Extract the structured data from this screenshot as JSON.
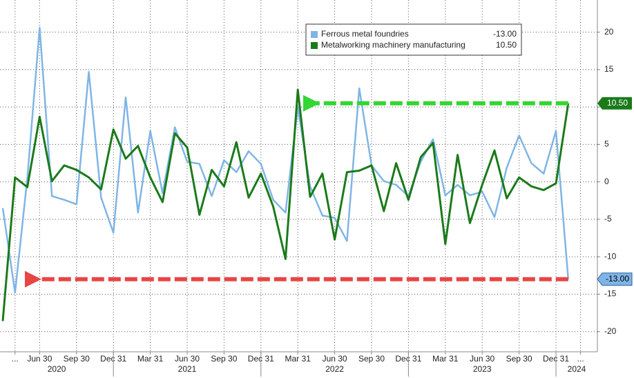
{
  "chart_data": {
    "type": "line",
    "categories": [
      null,
      "...",
      null,
      "Jun 30",
      null,
      null,
      "Sep 30",
      null,
      null,
      "Dec 31",
      null,
      null,
      "Mar 31",
      null,
      null,
      "Jun 30",
      null,
      null,
      "Sep 30",
      null,
      null,
      "Dec 31",
      null,
      null,
      "Mar 31",
      null,
      null,
      "Jun 30",
      null,
      null,
      "Sep 30",
      null,
      null,
      "Dec 31",
      null,
      null,
      "Mar 31",
      null,
      null,
      "Jun 30",
      null,
      null,
      "Sep 30",
      null,
      null,
      "Dec 31",
      null,
      "..."
    ],
    "years": [
      "2020",
      "2021",
      "2022",
      "2023",
      "2024"
    ],
    "series": [
      {
        "name": "Ferrous metal foundries",
        "color": "#7fb5e6",
        "arrow_color": "#e84545",
        "last_value_label": "-13.00",
        "values": [
          -3.5,
          -14.8,
          0.5,
          20.6,
          -1.9,
          -2.4,
          -3.0,
          14.7,
          -2.1,
          -6.8,
          11.3,
          -4.1,
          6.8,
          -1.5,
          7.3,
          2.7,
          2.4,
          -1.9,
          2.9,
          1.3,
          4.1,
          2.4,
          -2.4,
          -4.1,
          10.0,
          -0.6,
          -4.5,
          -4.8,
          -7.9,
          12.5,
          2.2,
          0.1,
          -0.4,
          -1.9,
          2.7,
          5.7,
          -1.8,
          -0.4,
          -1.8,
          -1.3,
          -4.7,
          1.9,
          6.2,
          2.5,
          1.1,
          6.8,
          -13.0,
          null
        ]
      },
      {
        "name": "Metalworking machinery manufacturing",
        "color": "#1a7a1a",
        "arrow_color": "#33d633",
        "last_value_label": "10.50",
        "values": [
          -18.6,
          0.6,
          -0.7,
          8.7,
          0.1,
          2.2,
          1.6,
          0.6,
          -1.0,
          7.0,
          3.1,
          4.8,
          0.6,
          -2.7,
          6.5,
          4.6,
          -4.4,
          1.6,
          -0.6,
          5.3,
          -2.1,
          1.1,
          -3.3,
          -10.3,
          12.3,
          -2.0,
          1.1,
          -7.7,
          1.3,
          1.5,
          2.2,
          -3.9,
          2.5,
          -2.4,
          3.3,
          5.2,
          -8.3,
          3.6,
          -5.5,
          -0.4,
          4.2,
          -2.2,
          0.6,
          -0.6,
          -1.1,
          -0.2,
          10.5,
          null
        ]
      }
    ],
    "ylim": [
      -22.7,
      24.3
    ],
    "yticks": [
      -20,
      -15,
      -10,
      -5,
      0,
      5,
      10,
      15,
      20
    ],
    "grid": true
  }
}
